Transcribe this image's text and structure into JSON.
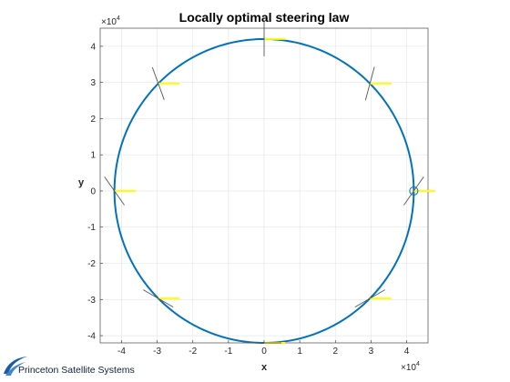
{
  "chart_data": {
    "type": "line",
    "title": "Locally optimal steering law",
    "xlabel": "x",
    "ylabel": "y",
    "x_exponent_label": "×10",
    "y_exponent_label": "×10",
    "exponent_power": "4",
    "xlim": [
      -4.6,
      4.6
    ],
    "ylim": [
      -4.2,
      4.5
    ],
    "xticks": [
      -4,
      -3,
      -2,
      -1,
      0,
      1,
      2,
      3,
      4
    ],
    "yticks": [
      -4,
      -3,
      -2,
      -1,
      0,
      1,
      2,
      3,
      4
    ],
    "grid": true,
    "orbit": {
      "radius": 4.2,
      "color": "#0072bd"
    },
    "sail_markers": [
      {
        "x": 4.2,
        "y": 0.0,
        "sail_angle_deg": 55,
        "circle": true
      },
      {
        "x": 2.97,
        "y": 2.97,
        "sail_angle_deg": 75
      },
      {
        "x": 0.0,
        "y": 4.2,
        "sail_angle_deg": 90
      },
      {
        "x": -2.97,
        "y": 2.97,
        "sail_angle_deg": 110
      },
      {
        "x": -4.2,
        "y": 0.0,
        "sail_angle_deg": 125
      },
      {
        "x": -2.97,
        "y": -2.97,
        "sail_angle_deg": 150
      },
      {
        "x": 0.0,
        "y": -4.2,
        "sail_angle_deg": 0
      },
      {
        "x": 2.97,
        "y": -2.97,
        "sail_angle_deg": 30
      }
    ],
    "sun_vector": {
      "length": 0.6,
      "color": "#ffff00"
    },
    "sail_color": "#555555"
  },
  "branding": {
    "company": "Princeton Satellite Systems"
  }
}
